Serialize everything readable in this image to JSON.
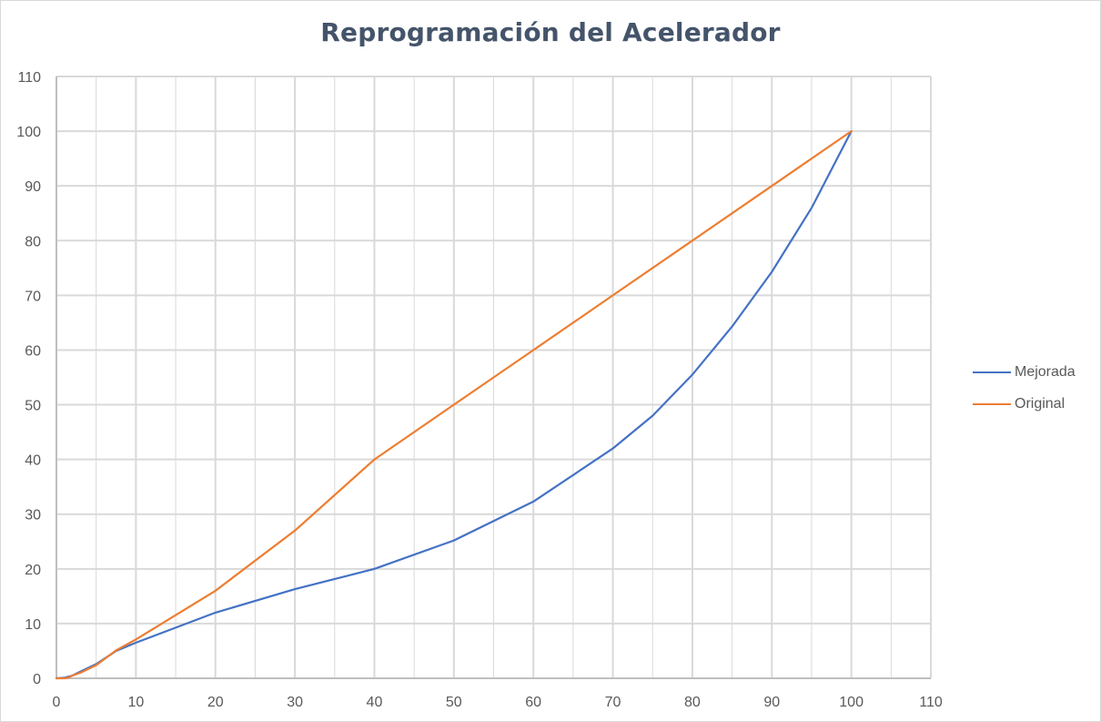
{
  "chart_data": {
    "type": "line",
    "title": "Reprogramación del Acelerador",
    "xlabel": "",
    "ylabel": "",
    "xlim": [
      0,
      110
    ],
    "ylim": [
      0,
      110
    ],
    "x_ticks": [
      0,
      10,
      20,
      30,
      40,
      50,
      60,
      70,
      80,
      90,
      100,
      110
    ],
    "y_ticks": [
      0,
      10,
      20,
      30,
      40,
      50,
      60,
      70,
      80,
      90,
      100,
      110
    ],
    "grid": true,
    "legend_position": "right",
    "series": [
      {
        "name": "Mejorada",
        "color": "#4472c4",
        "points": [
          [
            0,
            0
          ],
          [
            1,
            0.1
          ],
          [
            2,
            0.5
          ],
          [
            3,
            1.2
          ],
          [
            5,
            2.6
          ],
          [
            7.5,
            5
          ],
          [
            10,
            6.5
          ],
          [
            20,
            12
          ],
          [
            30,
            16.3
          ],
          [
            40,
            20
          ],
          [
            50,
            25.2
          ],
          [
            60,
            32.3
          ],
          [
            70,
            42
          ],
          [
            75,
            48
          ],
          [
            80,
            55.5
          ],
          [
            85,
            64.3
          ],
          [
            90,
            74.3
          ],
          [
            95,
            86
          ],
          [
            100,
            100
          ]
        ]
      },
      {
        "name": "Original",
        "color": "#ed7d31",
        "points": [
          [
            0,
            0
          ],
          [
            1,
            0
          ],
          [
            1.5,
            0.1
          ],
          [
            2,
            0.5
          ],
          [
            3,
            1
          ],
          [
            5,
            2.4
          ],
          [
            7.5,
            5.1
          ],
          [
            10,
            7.1
          ],
          [
            20,
            16
          ],
          [
            30,
            27
          ],
          [
            40,
            40
          ],
          [
            50,
            50
          ],
          [
            60,
            60
          ],
          [
            70,
            70
          ],
          [
            80,
            80
          ],
          [
            90,
            90
          ],
          [
            100,
            100
          ]
        ]
      }
    ]
  },
  "colors": {
    "grid": "#d9d9d9",
    "axis": "#bfbfbf",
    "title": "#44546a",
    "tick_text": "#595959"
  }
}
